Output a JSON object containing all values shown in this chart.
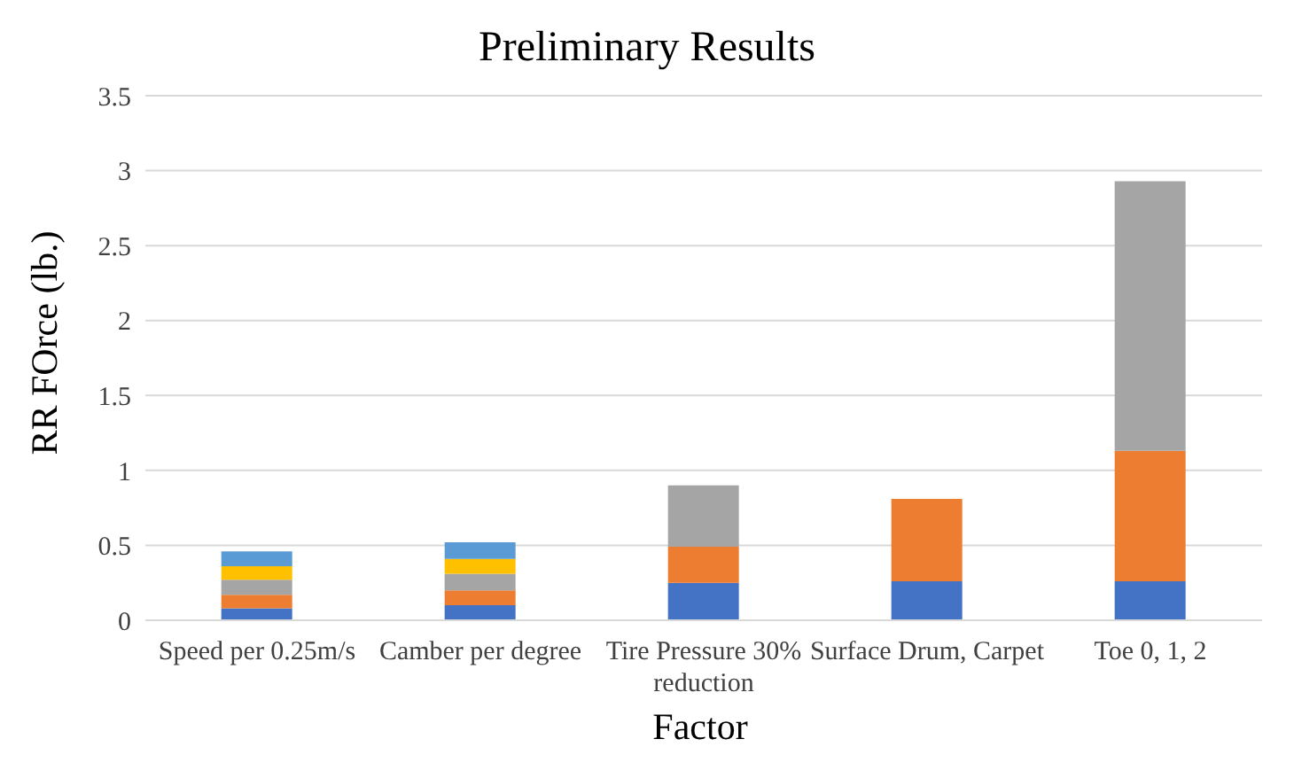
{
  "chart_data": {
    "type": "bar",
    "title": "Preliminary Results",
    "xlabel": "Factor",
    "ylabel": "RR FOrce (lb.)",
    "stacked": true,
    "grid": "y",
    "legend": false,
    "categories": [
      "Speed per 0.25m/s",
      "Camber per degree",
      "Tire Pressure 30% reduction",
      "Surface Drum, Carpet",
      "Toe 0, 1, 2"
    ],
    "series": [
      {
        "color": "#4472c4",
        "values": [
          0.08,
          0.1,
          0.25,
          0.26,
          0.26
        ]
      },
      {
        "color": "#ed7d31",
        "values": [
          0.09,
          0.1,
          0.24,
          0.55,
          0.87
        ]
      },
      {
        "color": "#a5a5a5",
        "values": [
          0.1,
          0.11,
          0.41,
          null,
          1.8
        ]
      },
      {
        "color": "#ffc000",
        "values": [
          0.09,
          0.1,
          null,
          null,
          null
        ]
      },
      {
        "color": "#5b9bd5",
        "values": [
          0.1,
          0.11,
          null,
          null,
          null
        ]
      }
    ],
    "ylim": [
      0,
      3.5
    ],
    "yticks": [
      0,
      0.5,
      1,
      1.5,
      2,
      2.5,
      3,
      3.5
    ]
  }
}
